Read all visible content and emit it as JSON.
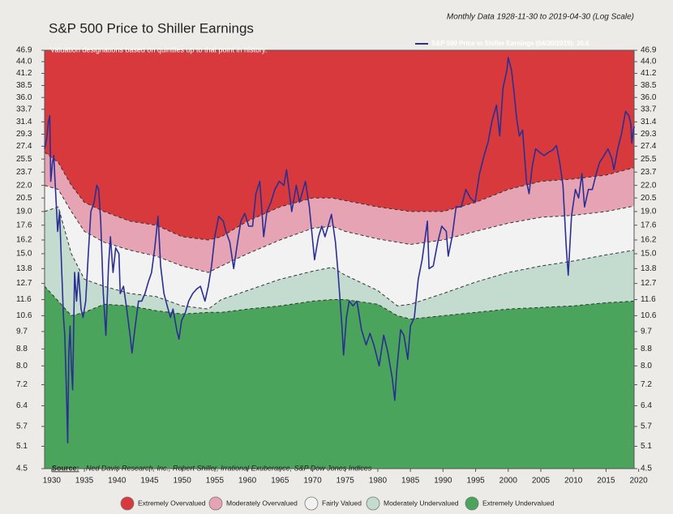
{
  "chart_data": {
    "type": "line",
    "title": "S&P 500 Price to Shiller Earnings",
    "subtitle": "Monthly Data 1928-11-30 to 2019-04-30 (Log Scale)",
    "annotation": "Valuation designations based on quintiles up to that point in history.",
    "source_label": "Source:",
    "source": "Ned Davis Research, Inc., Robert Shiller, Irrational Exuberance, S&P Dow Jones Indices",
    "log_scale": true,
    "xlim": [
      1928.9,
      2019.3
    ],
    "xticks": [
      1930,
      1935,
      1940,
      1945,
      1950,
      1955,
      1960,
      1965,
      1970,
      1975,
      1980,
      1985,
      1990,
      1995,
      2000,
      2005,
      2010,
      2015,
      2020
    ],
    "ylim": [
      4.5,
      46.9
    ],
    "yticks": [
      4.5,
      5.1,
      5.7,
      6.4,
      7.2,
      {
        "value": 8,
        "label": "8.0"
      },
      8.8,
      9.7,
      10.6,
      11.6,
      12.7,
      13.8,
      {
        "value": 15,
        "label": "15.0"
      },
      16.2,
      17.6,
      {
        "value": 19,
        "label": "19.0"
      },
      20.5,
      {
        "value": 22,
        "label": "22.0"
      },
      23.7,
      25.5,
      27.4,
      29.3,
      31.4,
      33.7,
      {
        "value": 36,
        "label": "36.0"
      },
      38.5,
      41.2,
      {
        "value": 44,
        "label": "44.0"
      },
      46.9
    ],
    "x": [
      1928.9,
      1929.2,
      1929.5,
      1929.7,
      1929.85,
      1930.1,
      1930.3,
      1930.6,
      1930.9,
      1931.2,
      1931.5,
      1931.8,
      1932.0,
      1932.3,
      1932.45,
      1932.6,
      1932.8,
      1933.0,
      1933.2,
      1933.5,
      1933.8,
      1934.1,
      1934.5,
      1934.8,
      1935.2,
      1935.6,
      1936.0,
      1936.5,
      1936.9,
      1937.2,
      1937.5,
      1937.9,
      1938.3,
      1938.7,
      1939.0,
      1939.4,
      1939.8,
      1940.3,
      1940.5,
      1941.0,
      1941.5,
      1942.0,
      1942.3,
      1942.8,
      1943.3,
      1943.8,
      1944.3,
      1944.8,
      1945.3,
      1945.8,
      1946.3,
      1946.7,
      1947.2,
      1947.7,
      1948.2,
      1948.6,
      1949.2,
      1949.5,
      1949.9,
      1950.5,
      1951.0,
      1951.6,
      1952.2,
      1952.8,
      1953.5,
      1954.0,
      1954.5,
      1955.0,
      1955.6,
      1956.3,
      1956.7,
      1957.3,
      1957.9,
      1958.5,
      1959.0,
      1959.6,
      1960.2,
      1960.8,
      1961.3,
      1961.9,
      1962.5,
      1963.0,
      1963.6,
      1964.2,
      1964.9,
      1965.6,
      1966.0,
      1966.8,
      1967.5,
      1968.0,
      1968.9,
      1969.5,
      1970.3,
      1970.9,
      1971.4,
      1971.9,
      1972.6,
      1972.9,
      1973.5,
      1973.9,
      1974.5,
      1974.75,
      1975.2,
      1975.6,
      1976.2,
      1976.8,
      1977.5,
      1978.2,
      1978.8,
      1979.4,
      1980.2,
      1980.9,
      1981.5,
      1982.2,
      1982.6,
      1982.9,
      1983.5,
      1984.0,
      1984.6,
      1985.0,
      1985.6,
      1986.2,
      1986.8,
      1987.6,
      1987.85,
      1988.5,
      1989.2,
      1989.8,
      1990.5,
      1990.8,
      1991.4,
      1992.0,
      1992.8,
      1993.5,
      1994.2,
      1994.9,
      1995.6,
      1996.3,
      1996.9,
      1997.5,
      1998.2,
      1998.7,
      1999.2,
      1999.8,
      2000.0,
      2000.5,
      2000.9,
      2001.3,
      2001.7,
      2002.2,
      2002.8,
      2003.2,
      2003.7,
      2004.2,
      2004.8,
      2005.5,
      2006.2,
      2006.8,
      2007.4,
      2007.9,
      2008.4,
      2008.9,
      2009.2,
      2009.7,
      2010.3,
      2010.8,
      2011.3,
      2011.7,
      2012.3,
      2012.9,
      2013.5,
      2014.0,
      2014.7,
      2015.3,
      2015.9,
      2016.2,
      2016.8,
      2017.4,
      2018.0,
      2018.5,
      2018.8,
      2018.95,
      2019.2,
      2019.33
    ],
    "series": [
      {
        "name": "S&P 500 Price to Shiller Earnings (04/30/2019): 30.6",
        "color": "#2b2f93",
        "values": [
          27.0,
          28.5,
          31.5,
          32.5,
          22.5,
          25,
          26,
          21,
          17,
          19,
          14,
          10.5,
          9.5,
          6.5,
          5.2,
          8.5,
          10,
          8,
          7.0,
          13.5,
          11.5,
          13.5,
          11,
          10.5,
          11.5,
          15,
          19,
          20,
          22,
          21.5,
          18,
          12,
          9.5,
          14,
          16.5,
          13.5,
          15.5,
          15,
          12,
          12.5,
          11,
          9.5,
          8.6,
          10,
          11.5,
          11.5,
          12,
          12.8,
          13.5,
          15.5,
          18.5,
          14,
          12,
          11.2,
          10.5,
          11,
          9.7,
          9.3,
          10.3,
          10.8,
          11.5,
          12,
          12.3,
          12.5,
          11.5,
          12.5,
          14,
          16.5,
          18.5,
          18.0,
          17,
          16,
          13.8,
          16,
          18,
          18.8,
          17.5,
          17.5,
          21,
          22.5,
          16.5,
          19,
          20,
          21.5,
          22.5,
          22,
          24,
          19,
          22,
          20,
          22.5,
          19.5,
          14.5,
          16.5,
          17.5,
          16.5,
          18,
          18.7,
          16,
          13.5,
          10,
          8.5,
          10.5,
          11.5,
          11.2,
          11.5,
          9.8,
          9.0,
          9.6,
          9.0,
          8.0,
          9.5,
          8.7,
          7.5,
          6.6,
          7.8,
          9.8,
          9.5,
          8.3,
          10.0,
          10.5,
          13,
          14.5,
          18.0,
          13.8,
          14.0,
          16,
          17.5,
          17,
          14.8,
          16.5,
          19.5,
          19.5,
          21.5,
          20.5,
          20.0,
          23.5,
          26,
          28,
          31.5,
          34.5,
          29,
          38,
          42,
          45,
          42,
          37,
          32,
          29,
          30,
          22.5,
          21.0,
          24.5,
          27.0,
          26.5,
          26,
          26.5,
          26.8,
          27.5,
          25,
          22,
          15.5,
          13.3,
          18.5,
          21.5,
          20.5,
          23.5,
          19.5,
          21.5,
          21.5,
          23.5,
          25,
          26,
          27,
          25.5,
          24,
          27,
          29.5,
          33.3,
          32.5,
          31,
          27.9,
          30.0,
          30.6
        ]
      }
    ],
    "band_x": [
      1928.9,
      1931,
      1933,
      1935,
      1938,
      1942,
      1946,
      1950,
      1954,
      1956,
      1960,
      1965,
      1970,
      1973,
      1975,
      1980,
      1983,
      1985,
      1990,
      1995,
      2000,
      2005,
      2010,
      2015,
      2019.3
    ],
    "boundaries": [
      [
        26.5,
        25,
        22,
        20,
        19,
        18,
        17.6,
        16.5,
        16.2,
        16.5,
        18,
        19.5,
        20.5,
        20.5,
        20.2,
        19.5,
        19.2,
        19,
        19,
        20,
        21.5,
        22.5,
        22.8,
        23.3,
        24.3
      ],
      [
        22,
        21.5,
        19,
        17,
        16,
        15.3,
        14.8,
        14,
        13.5,
        14,
        15,
        16.2,
        17.3,
        17.5,
        17,
        16.3,
        16,
        15.8,
        16.2,
        17,
        17.8,
        18.4,
        18.6,
        19,
        19.6
      ],
      [
        19,
        19.5,
        15,
        13,
        12.5,
        12,
        11.8,
        11.2,
        11,
        11.6,
        12.2,
        13,
        13.6,
        13.9,
        13.3,
        12.2,
        11.2,
        11.3,
        12,
        12.8,
        13.5,
        14,
        14.4,
        14.9,
        15.3
      ],
      [
        12.5,
        11.5,
        10.6,
        10.8,
        11.3,
        11.2,
        10.9,
        10.7,
        10.8,
        10.8,
        11,
        11.2,
        11.5,
        11.6,
        11.6,
        11.3,
        10.6,
        10.4,
        10.6,
        10.8,
        11,
        11.1,
        11.2,
        11.4,
        11.5
      ]
    ],
    "zones": [
      {
        "name": "Extremely Overvalued",
        "color": "#d8393d"
      },
      {
        "name": "Moderately Overvalued",
        "color": "#e6a3b3"
      },
      {
        "name": "Fairly Valued",
        "color": "#f2f2f2"
      },
      {
        "name": "Moderately Undervalued",
        "color": "#c4dccf"
      },
      {
        "name": "Extremely Undervalued",
        "color": "#4aa45b"
      }
    ]
  }
}
